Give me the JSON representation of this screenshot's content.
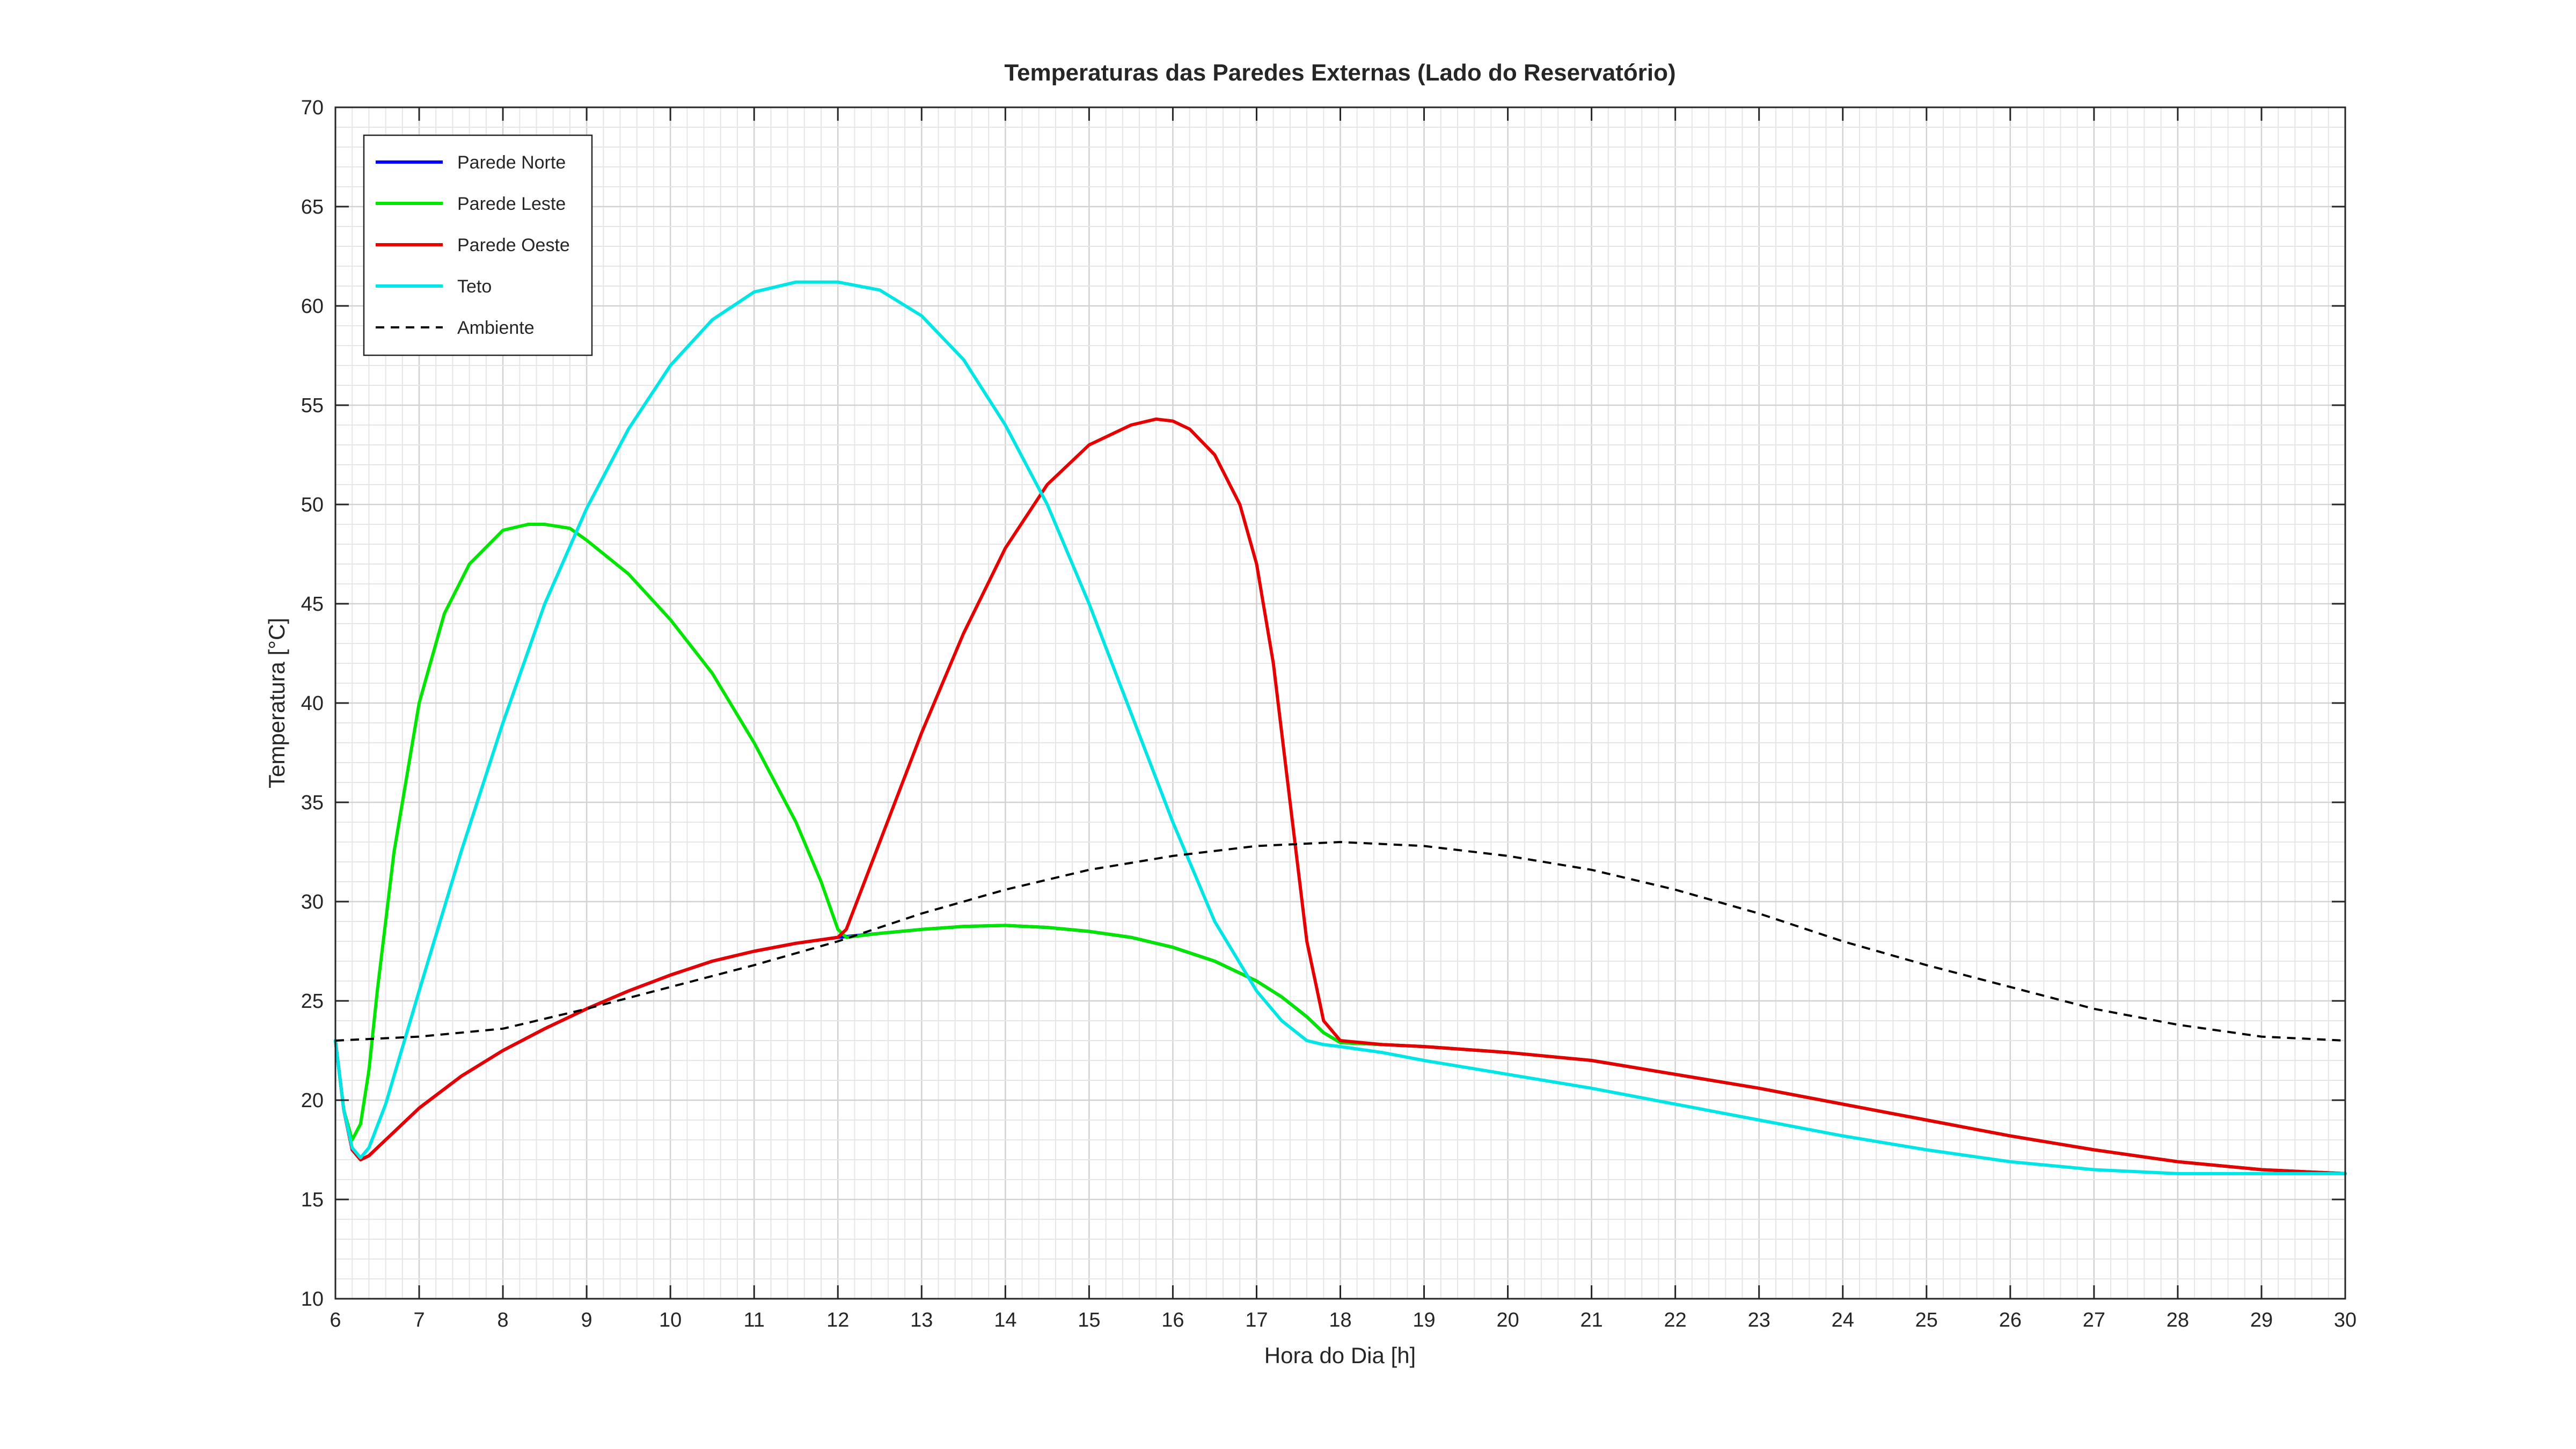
{
  "chart_data": {
    "type": "line",
    "title": "Temperaturas das Paredes Externas (Lado do Reservatório)",
    "xlabel": "Hora do Dia [h]",
    "ylabel": "Temperatura [°C]",
    "xlim": [
      6,
      30
    ],
    "ylim": [
      10,
      70
    ],
    "xticks": [
      "6",
      "7",
      "8",
      "9",
      "10",
      "11",
      "12",
      "13",
      "14",
      "15",
      "16",
      "17",
      "18",
      "19",
      "20",
      "21",
      "22",
      "23",
      "24",
      "25",
      "26",
      "27",
      "28",
      "29",
      "30"
    ],
    "yticks": [
      "10",
      "15",
      "20",
      "25",
      "30",
      "35",
      "40",
      "45",
      "50",
      "55",
      "60",
      "65",
      "70"
    ],
    "grid": "on (major and minor)",
    "legend_position": "top-left",
    "series": [
      {
        "name": "Parede Norte",
        "color": "#0000ff",
        "dash": "solid",
        "x": [
          6,
          6.1,
          6.2,
          6.3,
          6.4,
          6.6,
          7,
          7.5,
          8,
          8.5,
          9,
          9.5,
          10,
          10.5,
          11,
          11.5,
          12,
          12.5,
          13,
          13.5,
          14,
          14.5,
          15,
          15.5,
          16,
          16.5,
          17,
          17.3,
          17.6,
          17.8,
          18,
          18.5,
          19,
          20,
          21,
          22,
          23,
          24,
          25,
          26,
          27,
          28,
          29,
          30
        ],
        "y": [
          23,
          19.5,
          17.5,
          17.0,
          17.2,
          18.0,
          19.6,
          21.2,
          22.5,
          23.6,
          24.6,
          25.5,
          26.3,
          27.0,
          27.5,
          27.9,
          28.2,
          28.4,
          28.6,
          28.75,
          28.8,
          28.7,
          28.5,
          28.2,
          27.7,
          27.0,
          26.0,
          25.2,
          24.2,
          23.4,
          22.9,
          22.8,
          22.7,
          22.4,
          22.0,
          21.3,
          20.6,
          19.8,
          19.0,
          18.2,
          17.5,
          16.9,
          16.5,
          16.3
        ]
      },
      {
        "name": "Parede Leste",
        "color": "#00e600",
        "dash": "solid",
        "x": [
          6,
          6.1,
          6.2,
          6.3,
          6.4,
          6.5,
          6.7,
          7,
          7.3,
          7.6,
          8,
          8.3,
          8.5,
          8.8,
          9,
          9.5,
          10,
          10.5,
          11,
          11.5,
          11.8,
          12,
          12.1,
          12.5,
          13,
          13.5,
          14,
          14.5,
          15,
          15.5,
          16,
          16.5,
          17,
          17.3,
          17.6,
          17.8,
          18,
          18.5,
          19,
          20,
          21,
          22,
          23,
          24,
          25,
          26,
          27,
          28,
          29,
          30
        ],
        "y": [
          23,
          19.5,
          18.0,
          18.8,
          21.5,
          25.5,
          32.5,
          40.0,
          44.5,
          47.0,
          48.7,
          49.0,
          49.0,
          48.8,
          48.2,
          46.5,
          44.2,
          41.5,
          38.0,
          34.0,
          31.0,
          28.6,
          28.2,
          28.4,
          28.6,
          28.75,
          28.8,
          28.7,
          28.5,
          28.2,
          27.7,
          27.0,
          26.0,
          25.2,
          24.2,
          23.4,
          22.9,
          22.8,
          22.7,
          22.4,
          22.0,
          21.3,
          20.6,
          19.8,
          19.0,
          18.2,
          17.5,
          16.9,
          16.5,
          16.3
        ]
      },
      {
        "name": "Parede Oeste",
        "color": "#e60000",
        "dash": "solid",
        "x": [
          6,
          6.1,
          6.2,
          6.3,
          6.4,
          6.6,
          7,
          7.5,
          8,
          8.5,
          9,
          9.5,
          10,
          10.5,
          11,
          11.5,
          12,
          12.1,
          12.5,
          13,
          13.5,
          14,
          14.5,
          15,
          15.5,
          15.8,
          16,
          16.2,
          16.5,
          16.8,
          17,
          17.2,
          17.4,
          17.6,
          17.8,
          18,
          18.5,
          19,
          20,
          21,
          22,
          23,
          24,
          25,
          26,
          27,
          28,
          29,
          30
        ],
        "y": [
          23,
          19.5,
          17.5,
          17.0,
          17.2,
          18.0,
          19.6,
          21.2,
          22.5,
          23.6,
          24.6,
          25.5,
          26.3,
          27.0,
          27.5,
          27.9,
          28.2,
          28.6,
          33.0,
          38.5,
          43.5,
          47.8,
          51.0,
          53.0,
          54.0,
          54.3,
          54.2,
          53.8,
          52.5,
          50.0,
          47.0,
          42.0,
          35.0,
          28.0,
          24.0,
          23.0,
          22.8,
          22.7,
          22.4,
          22.0,
          21.3,
          20.6,
          19.8,
          19.0,
          18.2,
          17.5,
          16.9,
          16.5,
          16.3
        ]
      },
      {
        "name": "Teto",
        "color": "#00e6e6",
        "dash": "solid",
        "x": [
          6,
          6.1,
          6.2,
          6.3,
          6.4,
          6.6,
          7,
          7.5,
          8,
          8.5,
          9,
          9.5,
          10,
          10.5,
          11,
          11.5,
          12,
          12.5,
          13,
          13.5,
          14,
          14.5,
          15,
          15.5,
          16,
          16.5,
          17,
          17.3,
          17.6,
          17.8,
          18,
          18.5,
          19,
          20,
          21,
          22,
          23,
          24,
          25,
          26,
          27,
          28,
          29,
          30
        ],
        "y": [
          23,
          19.5,
          17.6,
          17.1,
          17.6,
          19.8,
          25.5,
          32.5,
          39.0,
          45.0,
          49.8,
          53.8,
          57.0,
          59.3,
          60.7,
          61.2,
          61.2,
          60.8,
          59.5,
          57.3,
          54.0,
          50.0,
          45.0,
          39.5,
          34.0,
          29.0,
          25.5,
          24.0,
          23.0,
          22.8,
          22.7,
          22.4,
          22.0,
          21.3,
          20.6,
          19.8,
          19.0,
          18.2,
          17.5,
          16.9,
          16.5,
          16.3,
          16.3,
          16.3
        ]
      },
      {
        "name": "Ambiente",
        "color": "#000000",
        "dash": "dashed",
        "x": [
          6,
          7,
          8,
          9,
          10,
          11,
          12,
          13,
          14,
          15,
          16,
          17,
          18,
          19,
          20,
          21,
          22,
          23,
          24,
          25,
          26,
          27,
          28,
          29,
          30
        ],
        "y": [
          23.0,
          23.2,
          23.6,
          24.6,
          25.7,
          26.8,
          28.0,
          29.4,
          30.6,
          31.6,
          32.3,
          32.8,
          33.0,
          32.8,
          32.3,
          31.6,
          30.6,
          29.4,
          28.0,
          26.8,
          25.7,
          24.6,
          23.8,
          23.2,
          23.0
        ]
      }
    ]
  }
}
